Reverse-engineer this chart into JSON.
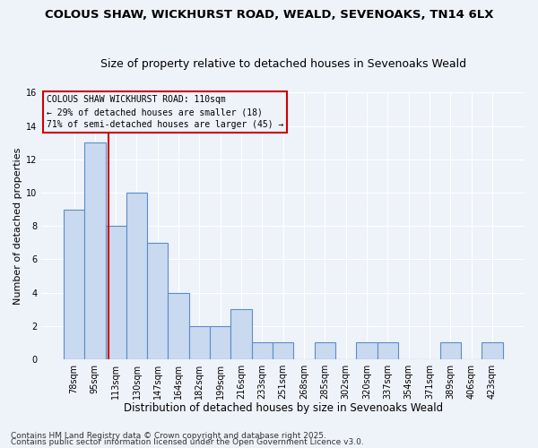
{
  "title1": "COLOUS SHAW, WICKHURST ROAD, WEALD, SEVENOAKS, TN14 6LX",
  "title2": "Size of property relative to detached houses in Sevenoaks Weald",
  "xlabel": "Distribution of detached houses by size in Sevenoaks Weald",
  "ylabel": "Number of detached properties",
  "bar_values": [
    9,
    13,
    8,
    10,
    7,
    4,
    2,
    2,
    3,
    1,
    1,
    0,
    1,
    0,
    1,
    1,
    0,
    0,
    1,
    0,
    1
  ],
  "bar_labels": [
    "78sqm",
    "95sqm",
    "113sqm",
    "130sqm",
    "147sqm",
    "164sqm",
    "182sqm",
    "199sqm",
    "216sqm",
    "233sqm",
    "251sqm",
    "268sqm",
    "285sqm",
    "302sqm",
    "320sqm",
    "337sqm",
    "354sqm",
    "371sqm",
    "389sqm",
    "406sqm",
    "423sqm"
  ],
  "bar_color": "#c9d9f0",
  "bar_edge_color": "#5b8ec4",
  "bar_edge_width": 0.8,
  "property_line_x": 1.65,
  "property_line_color": "#cc0000",
  "annotation_title": "COLOUS SHAW WICKHURST ROAD: 110sqm",
  "annotation_line1": "← 29% of detached houses are smaller (18)",
  "annotation_line2": "71% of semi-detached houses are larger (45) →",
  "annotation_box_color": "#cc0000",
  "ylim": [
    0,
    16
  ],
  "yticks": [
    0,
    2,
    4,
    6,
    8,
    10,
    12,
    14,
    16
  ],
  "footer1": "Contains HM Land Registry data © Crown copyright and database right 2025.",
  "footer2": "Contains public sector information licensed under the Open Government Licence v3.0.",
  "background_color": "#eef2f9",
  "grid_color": "#ffffff",
  "title1_fontsize": 9.5,
  "title2_fontsize": 9,
  "xlabel_fontsize": 8.5,
  "ylabel_fontsize": 8,
  "tick_fontsize": 7,
  "annotation_fontsize": 7,
  "footer_fontsize": 6.5
}
